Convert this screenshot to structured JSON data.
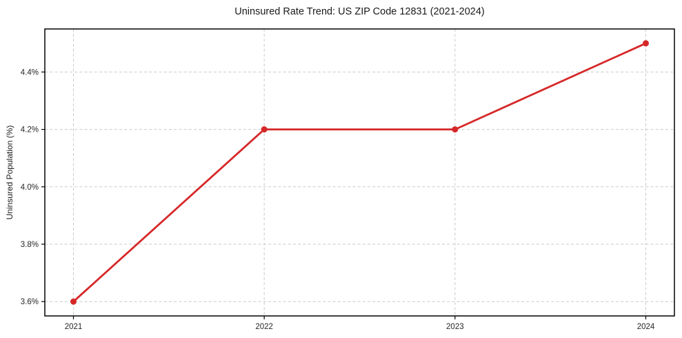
{
  "chart_data": {
    "type": "line",
    "title": "Uninsured Rate Trend: US ZIP Code 12831 (2021-2024)",
    "xlabel": "",
    "ylabel": "Uninsured Population (%)",
    "x": [
      2021,
      2022,
      2023,
      2024
    ],
    "values": [
      3.6,
      4.2,
      4.2,
      4.5
    ],
    "xticks": [
      2021,
      2022,
      2023,
      2024
    ],
    "xtick_labels": [
      "2021",
      "2022",
      "2023",
      "2024"
    ],
    "yticks": [
      3.6,
      3.8,
      4.0,
      4.2,
      4.4
    ],
    "ytick_labels": [
      "3.6%",
      "3.8%",
      "4.0%",
      "4.2%",
      "4.4%"
    ],
    "xlim": [
      2020.85,
      2024.15
    ],
    "ylim": [
      3.55,
      4.55
    ],
    "grid": true,
    "legend": false,
    "colors": {
      "line": "#d62728",
      "marker": "#d62728",
      "grid": "#c9c9c9",
      "frame": "#000000",
      "background": "#ffffff"
    }
  }
}
